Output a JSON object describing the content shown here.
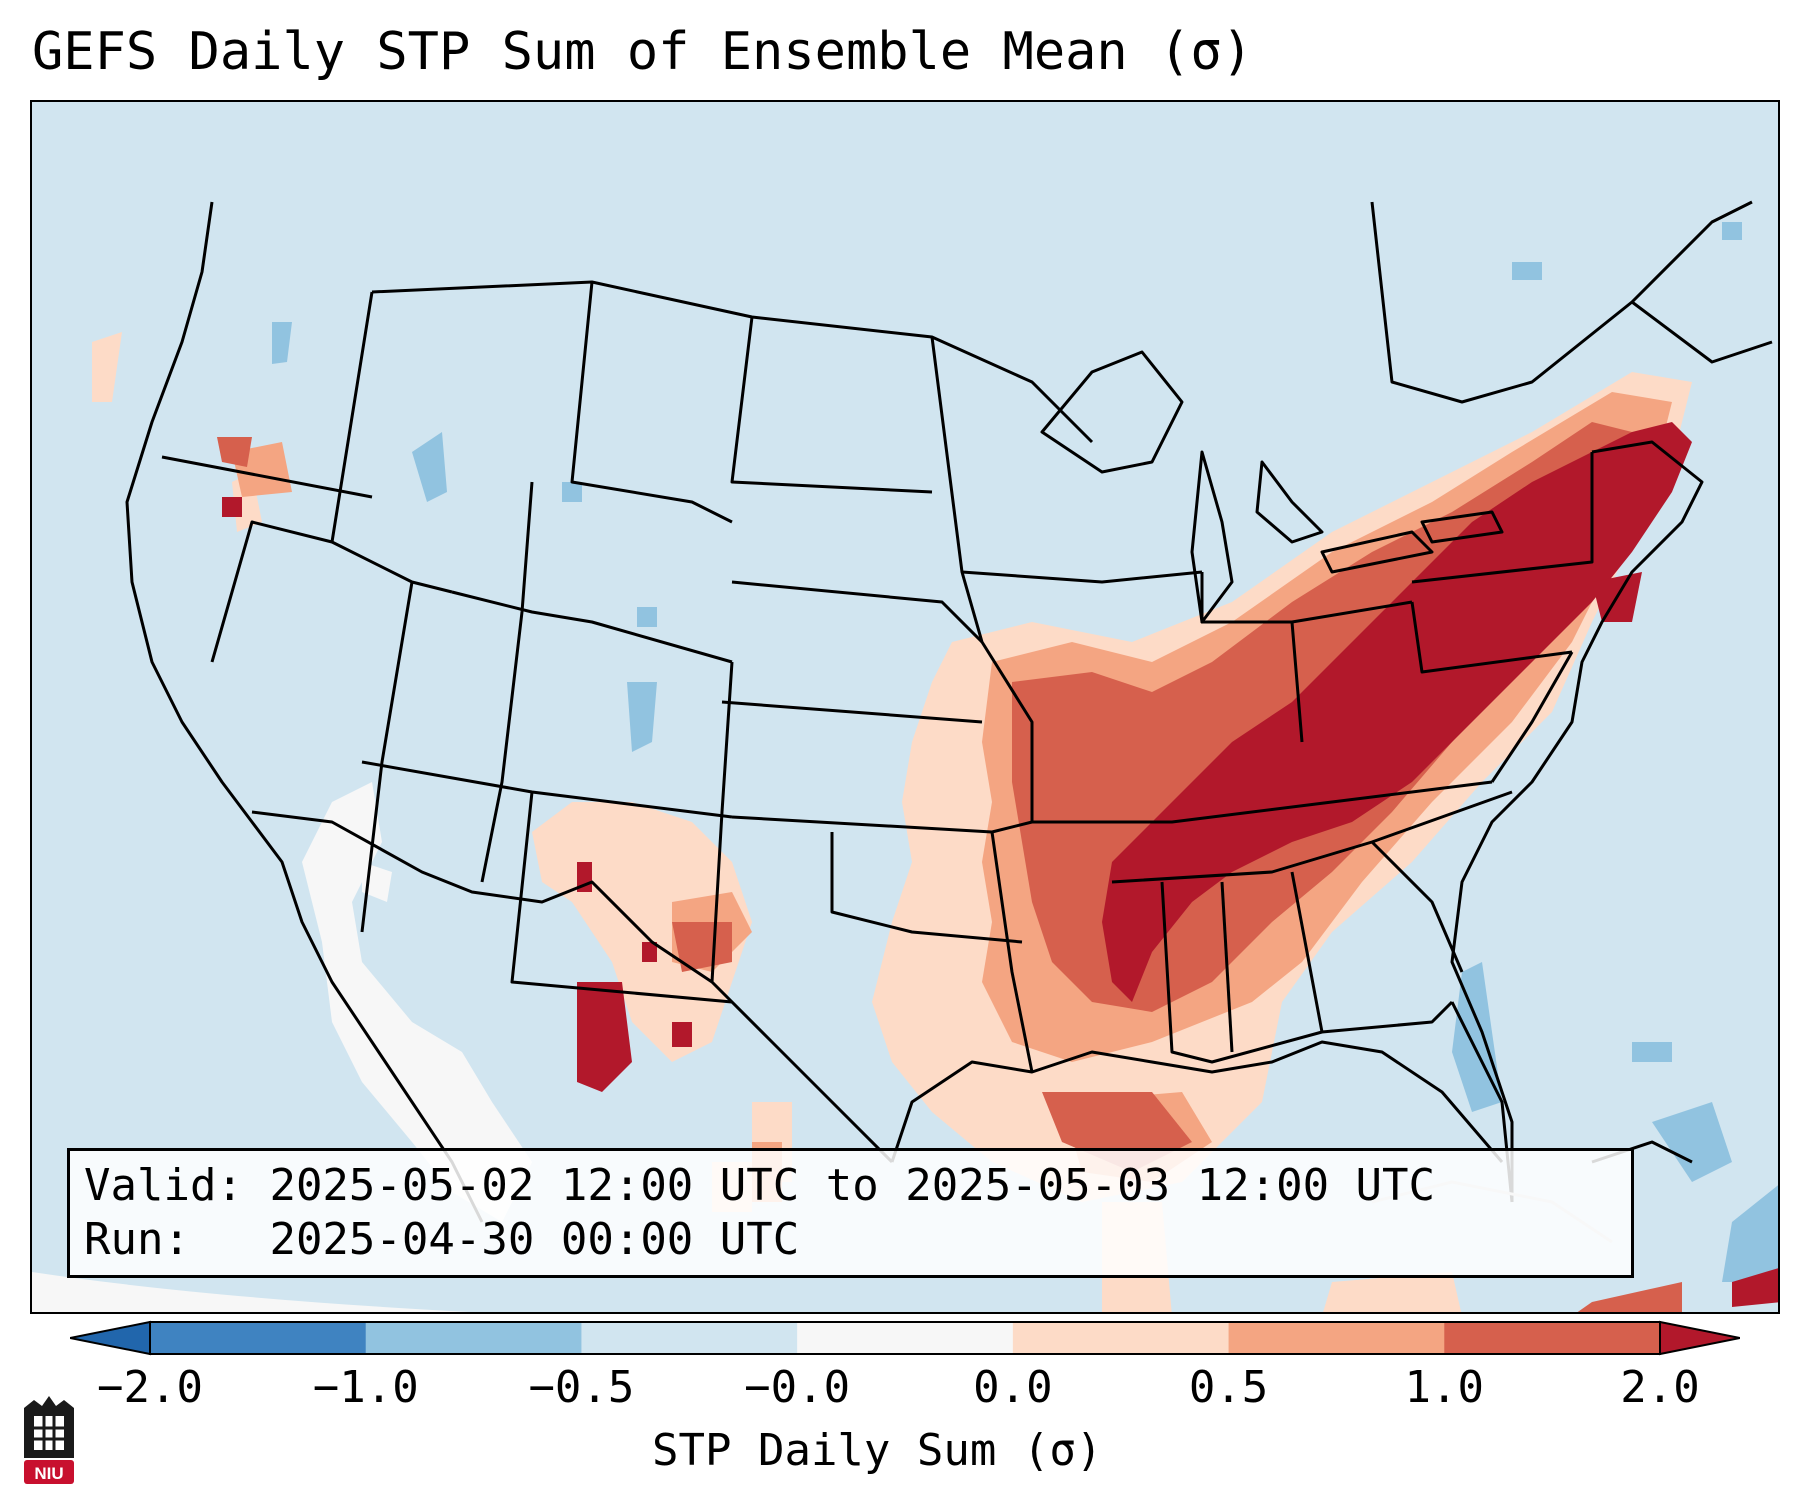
{
  "title": "GEFS Daily STP Sum of Ensemble Mean (σ)",
  "info": {
    "valid_label": "Valid:",
    "valid_text": "2025-05-02 12:00 UTC to 2025-05-03 12:00 UTC",
    "run_label": "Run:",
    "run_text": "2025-04-30 00:00 UTC"
  },
  "colorbar": {
    "label": "STP Daily Sum (σ)",
    "ticks": [
      "−2.0",
      "−1.0",
      "−0.5",
      "−0.0",
      "0.0",
      "0.5",
      "1.0",
      "2.0"
    ],
    "colors": [
      "#3f83c1",
      "#91c3e0",
      "#d1e5f0",
      "#f7f7f7",
      "#fddbc7",
      "#f4a582",
      "#d6604d",
      "#b2182b"
    ],
    "extend_low_color": "#2166ac",
    "extend_high_color": "#b2182b"
  },
  "map": {
    "background_color": "#d1e5f0",
    "coastline_color": "#000000",
    "region": "Contiguous United States, southern Canada, northern Mexico, Gulf of Mexico, western Atlantic",
    "anomaly_areas": [
      {
        "name": "northeast-us-and-ohio-valley",
        "level": 2.0
      },
      {
        "name": "tennessee-valley-and-deep-south",
        "level": 1.5
      },
      {
        "name": "mid-mississippi-valley",
        "level": 1.0
      },
      {
        "name": "southern-plains-and-gulf-coast",
        "level": 0.5
      },
      {
        "name": "gulf-of-mexico-offshore",
        "level": 0.5
      },
      {
        "name": "west-texas-big-bend",
        "level": 2.0
      },
      {
        "name": "pacific-northwest",
        "level": 0.5
      },
      {
        "name": "northern-mexico-low",
        "level": -0.3
      },
      {
        "name": "atlantic-bahamas-low",
        "level": -0.8
      }
    ]
  },
  "logo": {
    "text": "NIU"
  }
}
